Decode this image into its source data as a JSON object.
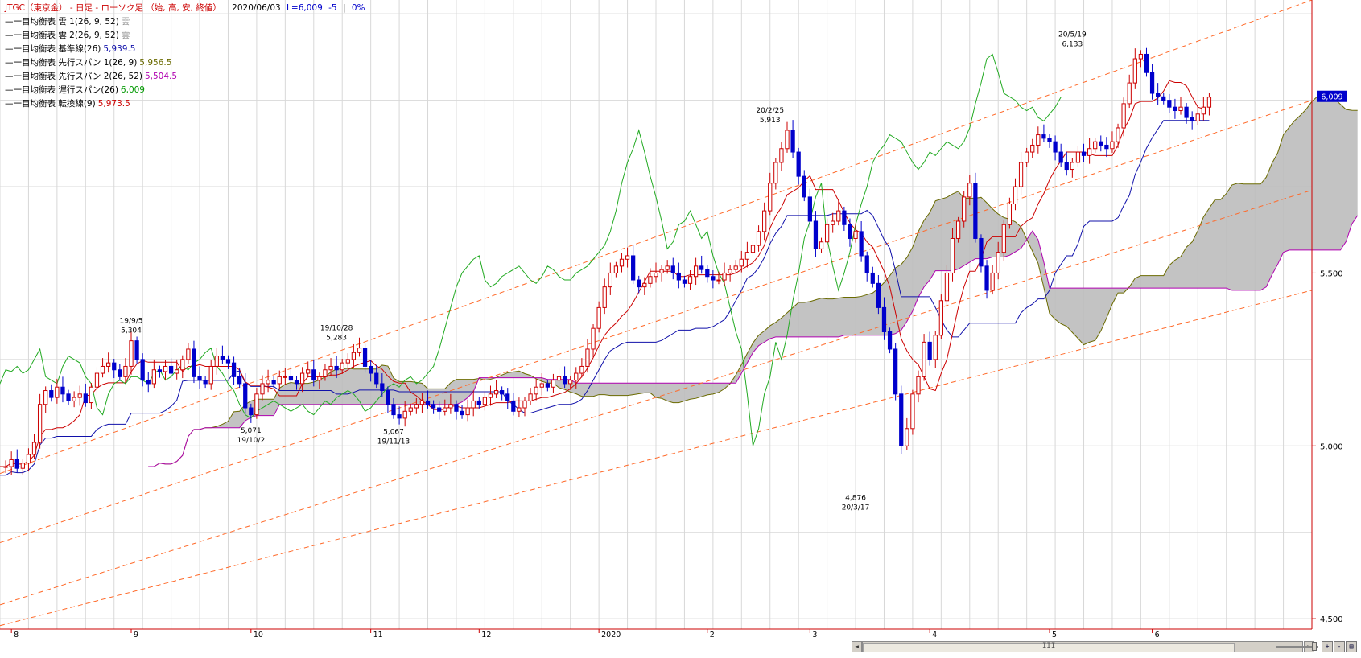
{
  "title": {
    "symbol": "JTGC（東京金）",
    "period": "日足",
    "chart_kind": "ローソク足",
    "ohlc": "（始, 高, 安, 終値）",
    "date": "2020/06/03",
    "last": "L=6,009",
    "change": "-5",
    "pct": "0%"
  },
  "legend": [
    {
      "label": "一目均衡表 雲 1(26, 9, 52)",
      "value": "雲",
      "color": "#9a9a9a"
    },
    {
      "label": "一目均衡表 雲 2(26, 9, 52)",
      "value": "雲",
      "color": "#9a9a9a"
    },
    {
      "label": "一目均衡表 基準線(26)",
      "value": "5,939.5",
      "color": "#1010aa"
    },
    {
      "label": "一目均衡表 先行スパン 1(26, 9)",
      "value": "5,956.5",
      "color": "#6b6b00"
    },
    {
      "label": "一目均衡表 先行スパン 2(26, 52)",
      "value": "5,504.5",
      "color": "#b000b0"
    },
    {
      "label": "一目均衡表 遅行スパン(26)",
      "value": "6,009",
      "color": "#009900"
    },
    {
      "label": "一目均衡表 転換線(9)",
      "value": "5,973.5",
      "color": "#cc0000"
    }
  ],
  "colors": {
    "up": "#cc0000",
    "down": "#0000cc",
    "kijun": "#1010aa",
    "tenkan": "#cc0000",
    "chikou": "#22aa22",
    "span1": "#6b6b00",
    "span2": "#b000b0",
    "cloud": "#bdbdbd",
    "cloud_dark": "#555555",
    "channel": "#ff6a2a",
    "axis": "#cc0000",
    "grid": "#d8d8d8"
  },
  "axis": {
    "y_ticks": [
      {
        "v": 4500,
        "label": "4,500"
      },
      {
        "v": 5000,
        "label": "5,000"
      },
      {
        "v": 5500,
        "label": "5,500"
      }
    ],
    "x_ticks": [
      {
        "i": 2,
        "label": "8"
      },
      {
        "i": 23,
        "label": "9"
      },
      {
        "i": 44,
        "label": "10"
      },
      {
        "i": 65,
        "label": "11"
      },
      {
        "i": 84,
        "label": "12"
      },
      {
        "i": 105,
        "label": "2020"
      },
      {
        "i": 124,
        "label": "2"
      },
      {
        "i": 142,
        "label": "3"
      },
      {
        "i": 163,
        "label": "4"
      },
      {
        "i": 184,
        "label": "5"
      },
      {
        "i": 202,
        "label": "6"
      }
    ],
    "price_badge": "6,009"
  },
  "chart_data": {
    "type": "candlestick",
    "y_range": [
      4470,
      6290
    ],
    "x_range": [
      0,
      230
    ],
    "price_series": [
      4940,
      4940,
      4960,
      4935,
      4950,
      4975,
      5010,
      5120,
      5160,
      5140,
      5170,
      5150,
      5130,
      5140,
      5150,
      5125,
      5170,
      5210,
      5230,
      5240,
      5220,
      5200,
      5230,
      5304,
      5250,
      5190,
      5180,
      5220,
      5215,
      5230,
      5210,
      5220,
      5250,
      5280,
      5200,
      5190,
      5180,
      5230,
      5260,
      5250,
      5240,
      5200,
      5180,
      5110,
      5090,
      5150,
      5180,
      5190,
      5180,
      5200,
      5200,
      5190,
      5180,
      5210,
      5220,
      5190,
      5200,
      5220,
      5230,
      5220,
      5240,
      5250,
      5270,
      5283,
      5230,
      5210,
      5180,
      5160,
      5120,
      5090,
      5080,
      5100,
      5110,
      5120,
      5130,
      5120,
      5110,
      5100,
      5110,
      5120,
      5100,
      5090,
      5110,
      5130,
      5120,
      5140,
      5150,
      5160,
      5150,
      5130,
      5100,
      5110,
      5130,
      5150,
      5170,
      5180,
      5170,
      5190,
      5200,
      5180,
      5190,
      5210,
      5230,
      5280,
      5340,
      5400,
      5460,
      5500,
      5520,
      5540,
      5550,
      5480,
      5460,
      5470,
      5490,
      5500,
      5510,
      5520,
      5500,
      5480,
      5470,
      5490,
      5520,
      5510,
      5490,
      5480,
      5480,
      5500,
      5510,
      5520,
      5540,
      5560,
      5580,
      5620,
      5680,
      5760,
      5820,
      5860,
      5913,
      5850,
      5780,
      5720,
      5650,
      5570,
      5590,
      5640,
      5650,
      5680,
      5640,
      5600,
      5620,
      5550,
      5500,
      5470,
      5400,
      5330,
      5280,
      5150,
      5000,
      5050,
      5150,
      5200,
      5300,
      5250,
      5320,
      5420,
      5500,
      5600,
      5650,
      5720,
      5760,
      5600,
      5520,
      5450,
      5500,
      5560,
      5640,
      5700,
      5750,
      5820,
      5850,
      5870,
      5900,
      5890,
      5880,
      5850,
      5820,
      5800,
      5820,
      5850,
      5840,
      5860,
      5880,
      5870,
      5860,
      5880,
      5920,
      5990,
      6050,
      6120,
      6133,
      6080,
      6020,
      6010,
      6000,
      5980,
      5970,
      5980,
      5950,
      5940,
      5960,
      5980,
      6009
    ],
    "kijun_values": [
      4810,
      4850,
      4900,
      4950,
      5000,
      5050,
      5100,
      5150,
      5180,
      5200,
      5220,
      5230,
      5220,
      5230,
      5260,
      5300,
      5350,
      5380,
      5420,
      5450,
      5480,
      5500,
      5500,
      5450,
      5420,
      5380,
      5340,
      5330,
      5360,
      5400,
      5460,
      5530,
      5600,
      5700,
      5800,
      5860,
      5880,
      5890,
      5910
    ],
    "annotations": [
      {
        "i": 23,
        "price": 5304,
        "date": "19/9/5",
        "value": "5,304",
        "pos": "above"
      },
      {
        "i": 44,
        "price": 5071,
        "date": "19/10/2",
        "value": "5,071",
        "pos": "below"
      },
      {
        "i": 59,
        "price": 5283,
        "date": "19/10/28",
        "value": "5,283",
        "pos": "above"
      },
      {
        "i": 69,
        "price": 5067,
        "date": "19/11/13",
        "value": "5,067",
        "pos": "below"
      },
      {
        "i": 135,
        "price": 5913,
        "date": "20/2/25",
        "value": "5,913",
        "pos": "above"
      },
      {
        "i": 150,
        "price": 4876,
        "date": "20/3/17",
        "value": "4,876",
        "pos": "below"
      },
      {
        "i": 188,
        "price": 6133,
        "date": "20/5/19",
        "value": "6,133",
        "pos": "above"
      }
    ]
  },
  "scrollbar": {
    "grip": "III",
    "left_btn": "◄",
    "right_btn": "►"
  },
  "zoom": {
    "buttons": [
      "+",
      "-",
      "▤"
    ]
  }
}
